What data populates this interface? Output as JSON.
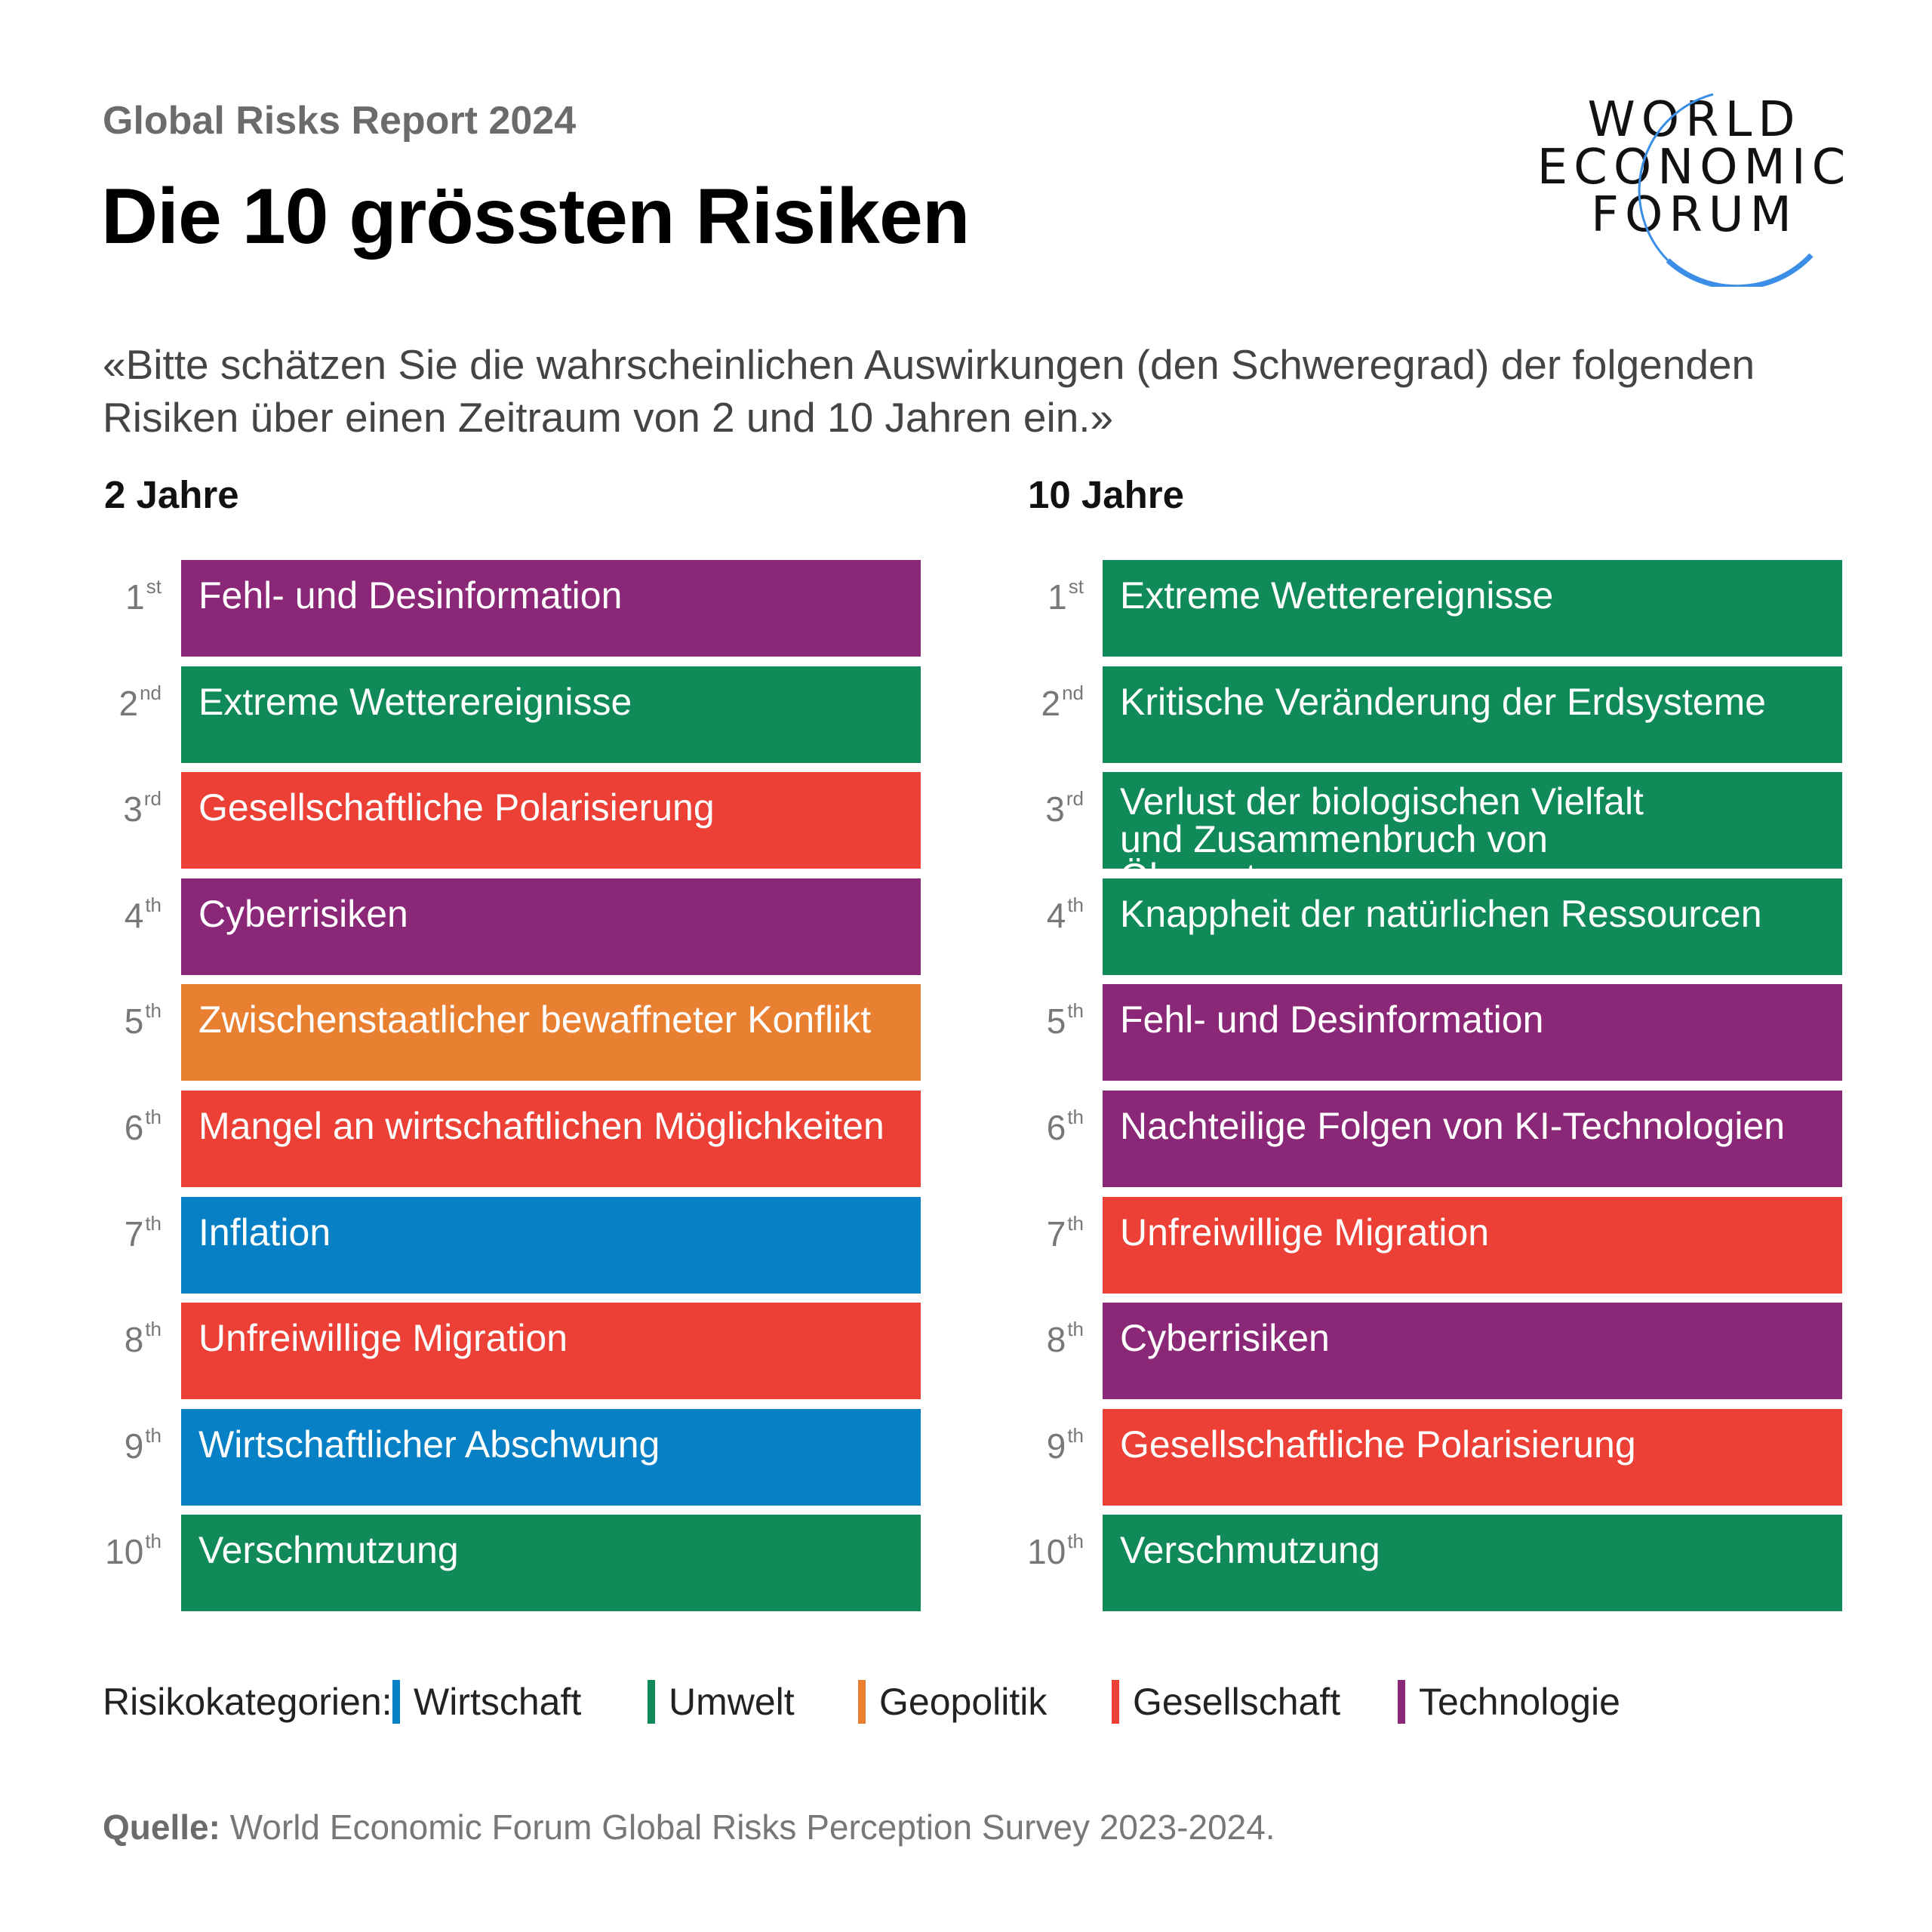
{
  "header": {
    "report": "Global Risks Report 2024",
    "title": "Die 10 grössten Risiken",
    "logo_text": [
      "WORLD",
      "ECONOMIC",
      "FORUM"
    ],
    "question": "«Bitte schätzen Sie die wahrscheinlichen Auswirkungen (den Schweregrad) der folgenden Risiken über einen Zeitraum von 2 und 10 Jahren ein.»"
  },
  "colors": {
    "Wirtschaft": "#0780c5",
    "Umwelt": "#0f8a58",
    "Geopolitik": "#e97f31",
    "Gesellschaft": "#ec3f35",
    "Technologie": "#8b2777",
    "logo_arc": "#3a8ee6"
  },
  "columns": [
    {
      "heading": "2 Jahre",
      "items": [
        {
          "num": "1",
          "suffix": "st",
          "label": "Fehl- und Desinformation",
          "category": "Technologie"
        },
        {
          "num": "2",
          "suffix": "nd",
          "label": "Extreme Wetterereignisse",
          "category": "Umwelt"
        },
        {
          "num": "3",
          "suffix": "rd",
          "label": "Gesellschaftliche Polarisierung",
          "category": "Gesellschaft"
        },
        {
          "num": "4",
          "suffix": "th",
          "label": "Cyberrisiken",
          "category": "Technologie"
        },
        {
          "num": "5",
          "suffix": "th",
          "label": "Zwischenstaatlicher bewaffneter Konflikt",
          "category": "Geopolitik"
        },
        {
          "num": "6",
          "suffix": "th",
          "label": "Mangel an wirtschaftlichen Möglichkeiten",
          "category": "Gesellschaft"
        },
        {
          "num": "7",
          "suffix": "th",
          "label": "Inflation",
          "category": "Wirtschaft"
        },
        {
          "num": "8",
          "suffix": "th",
          "label": "Unfreiwillige Migration",
          "category": "Gesellschaft"
        },
        {
          "num": "9",
          "suffix": "th",
          "label": "Wirtschaftlicher Abschwung",
          "category": "Wirtschaft"
        },
        {
          "num": "10",
          "suffix": "th",
          "label": "Verschmutzung",
          "category": "Umwelt"
        }
      ]
    },
    {
      "heading": "10 Jahre",
      "items": [
        {
          "num": "1",
          "suffix": "st",
          "label": "Extreme Wetterereignisse",
          "category": "Umwelt"
        },
        {
          "num": "2",
          "suffix": "nd",
          "label": "Kritische Veränderung der Erdsysteme",
          "category": "Umwelt"
        },
        {
          "num": "3",
          "suffix": "rd",
          "label": "Verlust der biologischen Vielfalt und Zusammenbruch von Ökosystemen",
          "category": "Umwelt"
        },
        {
          "num": "4",
          "suffix": "th",
          "label": "Knappheit der natürlichen Ressourcen",
          "category": "Umwelt"
        },
        {
          "num": "5",
          "suffix": "th",
          "label": "Fehl- und Desinformation",
          "category": "Technologie"
        },
        {
          "num": "6",
          "suffix": "th",
          "label": "Nachteilige Folgen von KI-Technologien",
          "category": "Technologie"
        },
        {
          "num": "7",
          "suffix": "th",
          "label": "Unfreiwillige Migration",
          "category": "Gesellschaft"
        },
        {
          "num": "8",
          "suffix": "th",
          "label": "Cyberrisiken",
          "category": "Technologie"
        },
        {
          "num": "9",
          "suffix": "th",
          "label": "Gesellschaftliche Polarisierung",
          "category": "Gesellschaft"
        },
        {
          "num": "10",
          "suffix": "th",
          "label": "Verschmutzung",
          "category": "Umwelt"
        }
      ]
    }
  ],
  "legend": {
    "title": "Risikokategorien:",
    "items": [
      "Wirtschaft",
      "Umwelt",
      "Geopolitik",
      "Gesellschaft",
      "Technologie"
    ]
  },
  "source": {
    "label": "Quelle:",
    "text": " World Economic Forum Global Risks Perception Survey 2023-2024."
  }
}
